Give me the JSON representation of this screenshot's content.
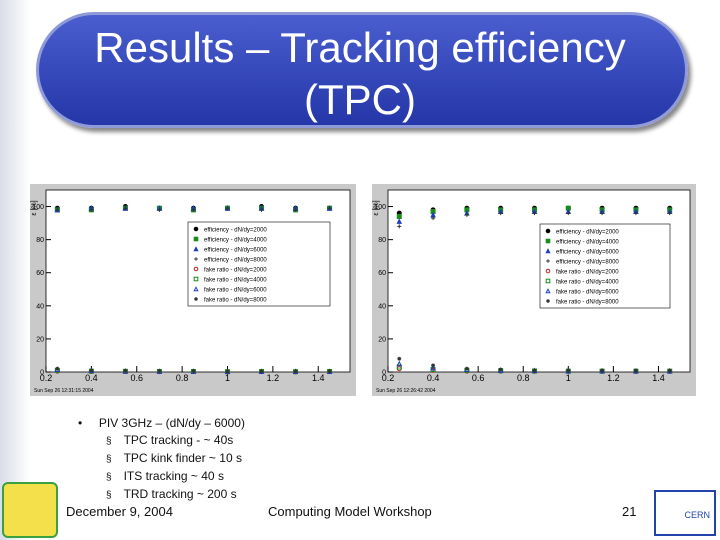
{
  "title": "Results – Tracking efficiency (TPC)",
  "bullet": {
    "text": "PIV 3GHz – (dN/dy – 6000)",
    "items": [
      "TPC tracking - ~ 40s",
      "TPC kink finder ~ 10 s",
      "ITS tracking ~ 40 s",
      "TRD tracking ~ 200 s"
    ]
  },
  "footer": {
    "date": "December 9, 2004",
    "event": "Computing Model Workshop",
    "page": "21"
  },
  "logo": "CERN",
  "chart_data": [
    {
      "type": "scatter",
      "y_label": "ε [%]",
      "stamp": "Sun Sep 26 12:31:15 2004",
      "x": [
        0.25,
        0.4,
        0.55,
        0.7,
        0.85,
        1.0,
        1.15,
        1.3,
        1.45
      ],
      "xlim": [
        0.2,
        1.54
      ],
      "xticks": [
        0.2,
        0.4,
        0.6,
        0.8,
        1,
        1.2,
        1.4
      ],
      "ylim": [
        0,
        110
      ],
      "yticks": [
        0,
        20,
        40,
        60,
        80,
        100
      ],
      "series": [
        {
          "name": "efficiency - dN/dy=2000",
          "color": "#000000",
          "marker": "circle",
          "values": [
            99,
            99,
            100,
            99,
            99,
            99,
            100,
            99,
            99
          ]
        },
        {
          "name": "efficiency - dN/dy=4000",
          "color": "#1a8c1a",
          "marker": "square",
          "values": [
            98,
            98,
            99,
            99,
            98,
            99,
            99,
            98,
            99
          ]
        },
        {
          "name": "efficiency - dN/dy=6000",
          "color": "#1f3fbf",
          "marker": "triangle",
          "values": [
            98,
            99,
            99,
            99,
            99,
            99,
            99,
            99,
            99
          ]
        },
        {
          "name": "efficiency - dN/dy=8000",
          "color": "#333333",
          "marker": "cross",
          "values": [
            98,
            98,
            99,
            98,
            98,
            99,
            98,
            98,
            99
          ]
        },
        {
          "name": "fake ratio - dN/dy=2000",
          "color": "#c02020",
          "marker": "open-circle",
          "values": [
            0.5,
            0.3,
            0.2,
            0.2,
            0.2,
            0.1,
            0.2,
            0.1,
            0.2
          ]
        },
        {
          "name": "fake ratio - dN/dy=4000",
          "color": "#1a8c1a",
          "marker": "open-square",
          "values": [
            1,
            0.5,
            0.4,
            0.3,
            0.3,
            0.2,
            0.3,
            0.2,
            0.3
          ]
        },
        {
          "name": "fake ratio - dN/dy=6000",
          "color": "#1f3fbf",
          "marker": "open-triangle",
          "values": [
            1.5,
            0.8,
            0.5,
            0.4,
            0.4,
            0.3,
            0.3,
            0.3,
            0.3
          ]
        },
        {
          "name": "fake ratio - dN/dy=8000",
          "color": "#333333",
          "marker": "star",
          "values": [
            2,
            1,
            0.7,
            0.5,
            0.5,
            0.4,
            0.4,
            0.4,
            0.4
          ]
        }
      ]
    },
    {
      "type": "scatter",
      "y_label": "ε [%]",
      "stamp": "Sun Sep 26 12:26:42 2004",
      "x": [
        0.25,
        0.4,
        0.55,
        0.7,
        0.85,
        1.0,
        1.15,
        1.3,
        1.45
      ],
      "xlim": [
        0.2,
        1.54
      ],
      "xticks": [
        0.2,
        0.4,
        0.6,
        0.8,
        1,
        1.2,
        1.4
      ],
      "ylim": [
        0,
        110
      ],
      "yticks": [
        0,
        20,
        40,
        60,
        80,
        100
      ],
      "series": [
        {
          "name": "efficiency - dN/dy=2000",
          "color": "#000000",
          "marker": "circle",
          "values": [
            96,
            98,
            99,
            99,
            99,
            99,
            99,
            99,
            99
          ]
        },
        {
          "name": "efficiency - dN/dy=4000",
          "color": "#1a8c1a",
          "marker": "square",
          "values": [
            94,
            97,
            98,
            98,
            98,
            99,
            98,
            98,
            98
          ]
        },
        {
          "name": "efficiency - dN/dy=6000",
          "color": "#1f3fbf",
          "marker": "triangle",
          "values": [
            91,
            95,
            96,
            97,
            97,
            97,
            97,
            97,
            97
          ]
        },
        {
          "name": "efficiency - dN/dy=8000",
          "color": "#333333",
          "marker": "cross",
          "values": [
            88,
            93,
            95,
            96,
            96,
            96,
            96,
            96,
            96
          ]
        },
        {
          "name": "fake ratio - dN/dy=2000",
          "color": "#c02020",
          "marker": "open-circle",
          "values": [
            2,
            1,
            0.5,
            0.5,
            0.4,
            0.4,
            0.4,
            0.3,
            0.4
          ]
        },
        {
          "name": "fake ratio - dN/dy=4000",
          "color": "#1a8c1a",
          "marker": "open-square",
          "values": [
            3,
            1.5,
            1,
            0.8,
            0.6,
            0.5,
            0.5,
            0.5,
            0.5
          ]
        },
        {
          "name": "fake ratio - dN/dy=6000",
          "color": "#1f3fbf",
          "marker": "open-triangle",
          "values": [
            5,
            2.5,
            1.5,
            1,
            0.8,
            0.7,
            0.7,
            0.6,
            0.6
          ]
        },
        {
          "name": "fake ratio - dN/dy=8000",
          "color": "#333333",
          "marker": "star",
          "values": [
            8,
            4,
            2,
            1.5,
            1,
            1,
            0.9,
            0.8,
            0.8
          ]
        }
      ]
    }
  ]
}
